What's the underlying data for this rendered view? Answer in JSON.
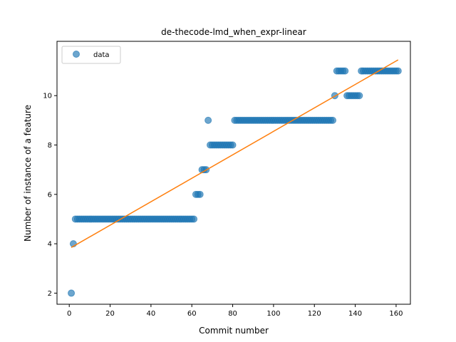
{
  "chart_data": {
    "type": "scatter",
    "title": "de-thecode-lmd_when_expr-linear",
    "xlabel": "Commit number",
    "ylabel": "Number of instance of a feature",
    "xlim": [
      -6,
      167
    ],
    "ylim": [
      1.55,
      12.2
    ],
    "xticks": [
      0,
      20,
      40,
      60,
      80,
      100,
      120,
      140,
      160
    ],
    "yticks": [
      2,
      4,
      6,
      8,
      10
    ],
    "grid": false,
    "legend_placement": "top-left",
    "colors": {
      "points": "#1f77b4",
      "fit_line": "#ff7f0e"
    },
    "series": [
      {
        "name": "data",
        "kind": "points",
        "segments": [
          {
            "x_from": 1,
            "x_to": 1,
            "y": 2
          },
          {
            "x_from": 2,
            "x_to": 2,
            "y": 4
          },
          {
            "x_from": 3,
            "x_to": 61,
            "y": 5
          },
          {
            "x_from": 62,
            "x_to": 64,
            "y": 6
          },
          {
            "x_from": 65,
            "x_to": 67,
            "y": 7
          },
          {
            "x_from": 68,
            "x_to": 68,
            "y": 9
          },
          {
            "x_from": 69,
            "x_to": 80,
            "y": 8
          },
          {
            "x_from": 81,
            "x_to": 129,
            "y": 9
          },
          {
            "x_from": 130,
            "x_to": 130,
            "y": 10
          },
          {
            "x_from": 131,
            "x_to": 135,
            "y": 11
          },
          {
            "x_from": 136,
            "x_to": 142,
            "y": 10
          },
          {
            "x_from": 143,
            "x_to": 161,
            "y": 11
          }
        ]
      },
      {
        "name": "",
        "kind": "line",
        "x": [
          1,
          161
        ],
        "y": [
          3.85,
          11.45
        ]
      }
    ]
  }
}
